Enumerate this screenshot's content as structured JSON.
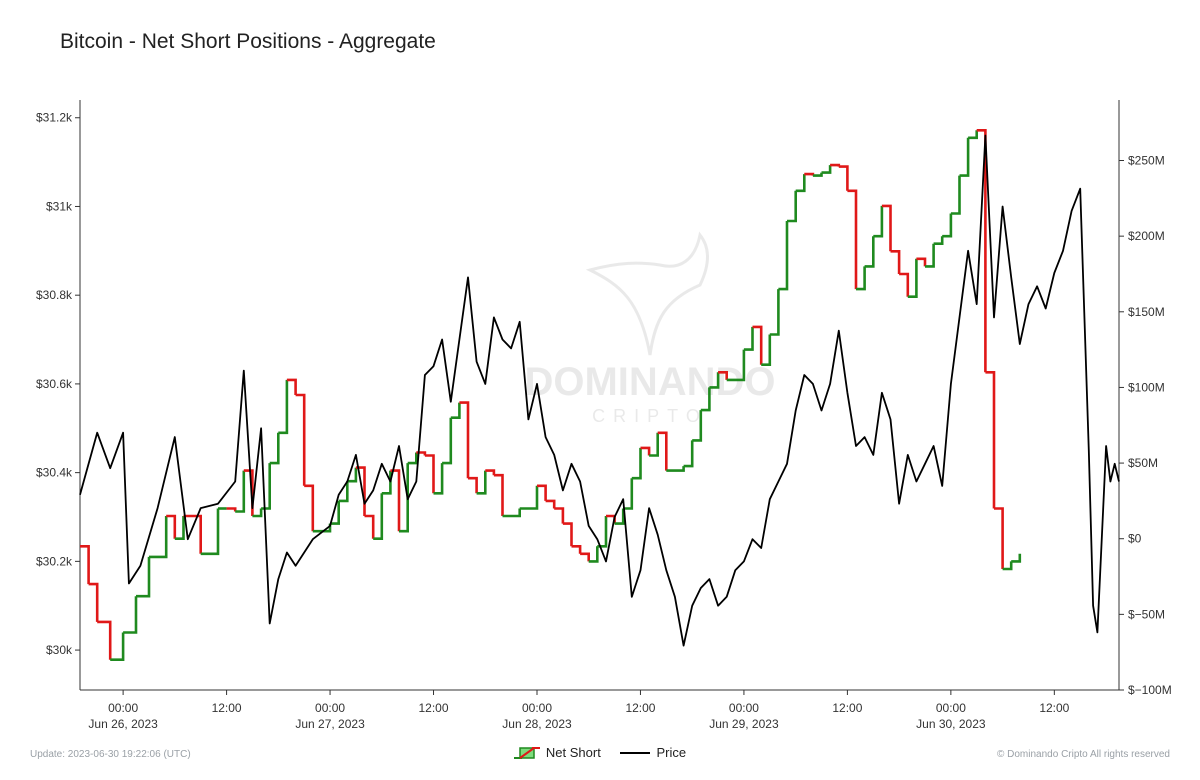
{
  "title": "Bitcoin - Net Short Positions - Aggregate",
  "footer": {
    "update": "Update: 2023-06-30 19:22:06 (UTC)",
    "copyright": "© Dominando Cripto All rights reserved"
  },
  "watermark": {
    "line1": "DOMINANDO",
    "line2": "CRIPTO"
  },
  "legend": {
    "net_short": "Net Short",
    "price": "Price"
  },
  "colors": {
    "up": "#1f8a1f",
    "down": "#e01818",
    "price": "#000000",
    "axis": "#333333"
  },
  "chart_data": {
    "type": "line",
    "x_axis": {
      "range": [
        "2023-06-25 19:00",
        "2023-06-30 19:30"
      ],
      "ticks": [
        {
          "t": "2023-06-26 00:00",
          "time": "00:00",
          "date": "Jun 26, 2023"
        },
        {
          "t": "2023-06-26 12:00",
          "time": "12:00",
          "date": ""
        },
        {
          "t": "2023-06-27 00:00",
          "time": "00:00",
          "date": "Jun 27, 2023"
        },
        {
          "t": "2023-06-27 12:00",
          "time": "12:00",
          "date": ""
        },
        {
          "t": "2023-06-28 00:00",
          "time": "00:00",
          "date": "Jun 28, 2023"
        },
        {
          "t": "2023-06-28 12:00",
          "time": "12:00",
          "date": ""
        },
        {
          "t": "2023-06-29 00:00",
          "time": "00:00",
          "date": "Jun 29, 2023"
        },
        {
          "t": "2023-06-29 12:00",
          "time": "12:00",
          "date": ""
        },
        {
          "t": "2023-06-30 00:00",
          "time": "00:00",
          "date": "Jun 30, 2023"
        },
        {
          "t": "2023-06-30 12:00",
          "time": "12:00",
          "date": ""
        }
      ]
    },
    "y_left": {
      "range": [
        29910,
        31240
      ],
      "ticks": [
        30000,
        30200,
        30400,
        30600,
        30800,
        31000,
        31200
      ],
      "tick_labels": [
        "$30k",
        "$30.2k",
        "$30.4k",
        "$30.6k",
        "$30.8k",
        "$31k",
        "$31.2k"
      ]
    },
    "y_right": {
      "range": [
        -100,
        290
      ],
      "ticks": [
        -100,
        -50,
        0,
        50,
        100,
        150,
        200,
        250
      ],
      "tick_labels": [
        "$−100M",
        "$−50M",
        "$0",
        "$50M",
        "$100M",
        "$150M",
        "$200M",
        "$250M"
      ]
    },
    "series": [
      {
        "name": "Net Short",
        "axis": "right",
        "style": "step",
        "points": [
          [
            "2023-06-25 19:00",
            -5
          ],
          [
            "2023-06-25 20:00",
            -30
          ],
          [
            "2023-06-25 21:00",
            -55
          ],
          [
            "2023-06-25 22:30",
            -80
          ],
          [
            "2023-06-26 00:00",
            -62
          ],
          [
            "2023-06-26 01:30",
            -38
          ],
          [
            "2023-06-26 03:00",
            -12
          ],
          [
            "2023-06-26 05:00",
            15
          ],
          [
            "2023-06-26 06:00",
            0
          ],
          [
            "2023-06-26 07:00",
            15
          ],
          [
            "2023-06-26 09:00",
            -10
          ],
          [
            "2023-06-26 11:00",
            20
          ],
          [
            "2023-06-26 12:00",
            20
          ],
          [
            "2023-06-26 13:00",
            18
          ],
          [
            "2023-06-26 14:00",
            45
          ],
          [
            "2023-06-26 15:00",
            15
          ],
          [
            "2023-06-26 16:00",
            20
          ],
          [
            "2023-06-26 17:00",
            50
          ],
          [
            "2023-06-26 18:00",
            70
          ],
          [
            "2023-06-26 19:00",
            105
          ],
          [
            "2023-06-26 20:00",
            95
          ],
          [
            "2023-06-26 21:00",
            35
          ],
          [
            "2023-06-26 22:00",
            5
          ],
          [
            "2023-06-27 00:00",
            10
          ],
          [
            "2023-06-27 01:00",
            25
          ],
          [
            "2023-06-27 02:00",
            38
          ],
          [
            "2023-06-27 03:00",
            47
          ],
          [
            "2023-06-27 04:00",
            15
          ],
          [
            "2023-06-27 05:00",
            0
          ],
          [
            "2023-06-27 06:00",
            30
          ],
          [
            "2023-06-27 07:00",
            45
          ],
          [
            "2023-06-27 08:00",
            5
          ],
          [
            "2023-06-27 09:00",
            50
          ],
          [
            "2023-06-27 10:00",
            57
          ],
          [
            "2023-06-27 11:00",
            55
          ],
          [
            "2023-06-27 12:00",
            30
          ],
          [
            "2023-06-27 13:00",
            50
          ],
          [
            "2023-06-27 14:00",
            80
          ],
          [
            "2023-06-27 15:00",
            90
          ],
          [
            "2023-06-27 16:00",
            40
          ],
          [
            "2023-06-27 17:00",
            30
          ],
          [
            "2023-06-27 18:00",
            45
          ],
          [
            "2023-06-27 19:00",
            42
          ],
          [
            "2023-06-27 20:00",
            15
          ],
          [
            "2023-06-27 22:00",
            20
          ],
          [
            "2023-06-28 00:00",
            35
          ],
          [
            "2023-06-28 01:00",
            25
          ],
          [
            "2023-06-28 02:00",
            20
          ],
          [
            "2023-06-28 03:00",
            10
          ],
          [
            "2023-06-28 04:00",
            -5
          ],
          [
            "2023-06-28 05:00",
            -10
          ],
          [
            "2023-06-28 06:00",
            -15
          ],
          [
            "2023-06-28 07:00",
            -5
          ],
          [
            "2023-06-28 08:00",
            15
          ],
          [
            "2023-06-28 09:00",
            10
          ],
          [
            "2023-06-28 10:00",
            20
          ],
          [
            "2023-06-28 11:00",
            40
          ],
          [
            "2023-06-28 12:00",
            60
          ],
          [
            "2023-06-28 13:00",
            55
          ],
          [
            "2023-06-28 14:00",
            70
          ],
          [
            "2023-06-28 15:00",
            45
          ],
          [
            "2023-06-28 17:00",
            48
          ],
          [
            "2023-06-28 18:00",
            65
          ],
          [
            "2023-06-28 19:00",
            85
          ],
          [
            "2023-06-28 20:00",
            100
          ],
          [
            "2023-06-28 21:00",
            110
          ],
          [
            "2023-06-28 22:00",
            105
          ],
          [
            "2023-06-29 00:00",
            125
          ],
          [
            "2023-06-29 01:00",
            140
          ],
          [
            "2023-06-29 02:00",
            115
          ],
          [
            "2023-06-29 03:00",
            135
          ],
          [
            "2023-06-29 04:00",
            165
          ],
          [
            "2023-06-29 05:00",
            210
          ],
          [
            "2023-06-29 06:00",
            230
          ],
          [
            "2023-06-29 07:00",
            241
          ],
          [
            "2023-06-29 08:00",
            240
          ],
          [
            "2023-06-29 09:00",
            242
          ],
          [
            "2023-06-29 10:00",
            247
          ],
          [
            "2023-06-29 11:00",
            246
          ],
          [
            "2023-06-29 12:00",
            230
          ],
          [
            "2023-06-29 13:00",
            165
          ],
          [
            "2023-06-29 14:00",
            180
          ],
          [
            "2023-06-29 15:00",
            200
          ],
          [
            "2023-06-29 16:00",
            220
          ],
          [
            "2023-06-29 17:00",
            190
          ],
          [
            "2023-06-29 18:00",
            175
          ],
          [
            "2023-06-29 19:00",
            160
          ],
          [
            "2023-06-29 20:00",
            185
          ],
          [
            "2023-06-29 21:00",
            180
          ],
          [
            "2023-06-29 22:00",
            195
          ],
          [
            "2023-06-29 23:00",
            200
          ],
          [
            "2023-06-30 00:00",
            215
          ],
          [
            "2023-06-30 01:00",
            240
          ],
          [
            "2023-06-30 02:00",
            265
          ],
          [
            "2023-06-30 03:00",
            270
          ],
          [
            "2023-06-30 04:00",
            110
          ],
          [
            "2023-06-30 05:00",
            20
          ],
          [
            "2023-06-30 06:00",
            -20
          ],
          [
            "2023-06-30 07:00",
            -15
          ],
          [
            "2023-06-30 08:00",
            -10
          ]
        ]
      },
      {
        "name": "Price",
        "axis": "left",
        "style": "line",
        "points": [
          [
            "2023-06-25 19:00",
            30350
          ],
          [
            "2023-06-25 21:00",
            30490
          ],
          [
            "2023-06-25 22:30",
            30410
          ],
          [
            "2023-06-26 00:00",
            30490
          ],
          [
            "2023-06-26 00:40",
            30150
          ],
          [
            "2023-06-26 02:00",
            30190
          ],
          [
            "2023-06-26 04:00",
            30320
          ],
          [
            "2023-06-26 06:00",
            30480
          ],
          [
            "2023-06-26 07:30",
            30250
          ],
          [
            "2023-06-26 09:00",
            30320
          ],
          [
            "2023-06-26 11:00",
            30330
          ],
          [
            "2023-06-26 13:00",
            30380
          ],
          [
            "2023-06-26 14:00",
            30630
          ],
          [
            "2023-06-26 15:00",
            30320
          ],
          [
            "2023-06-26 16:00",
            30500
          ],
          [
            "2023-06-26 17:00",
            30060
          ],
          [
            "2023-06-26 18:00",
            30160
          ],
          [
            "2023-06-26 19:00",
            30220
          ],
          [
            "2023-06-26 20:00",
            30190
          ],
          [
            "2023-06-26 22:00",
            30250
          ],
          [
            "2023-06-27 00:00",
            30280
          ],
          [
            "2023-06-27 01:00",
            30350
          ],
          [
            "2023-06-27 02:00",
            30380
          ],
          [
            "2023-06-27 03:00",
            30440
          ],
          [
            "2023-06-27 04:00",
            30330
          ],
          [
            "2023-06-27 05:00",
            30360
          ],
          [
            "2023-06-27 06:00",
            30420
          ],
          [
            "2023-06-27 07:00",
            30380
          ],
          [
            "2023-06-27 08:00",
            30460
          ],
          [
            "2023-06-27 09:00",
            30340
          ],
          [
            "2023-06-27 10:00",
            30380
          ],
          [
            "2023-06-27 11:00",
            30620
          ],
          [
            "2023-06-27 12:00",
            30640
          ],
          [
            "2023-06-27 13:00",
            30700
          ],
          [
            "2023-06-27 14:00",
            30560
          ],
          [
            "2023-06-27 15:00",
            30700
          ],
          [
            "2023-06-27 16:00",
            30840
          ],
          [
            "2023-06-27 17:00",
            30650
          ],
          [
            "2023-06-27 18:00",
            30600
          ],
          [
            "2023-06-27 19:00",
            30750
          ],
          [
            "2023-06-27 20:00",
            30700
          ],
          [
            "2023-06-27 21:00",
            30680
          ],
          [
            "2023-06-27 22:00",
            30740
          ],
          [
            "2023-06-27 23:00",
            30520
          ],
          [
            "2023-06-28 00:00",
            30600
          ],
          [
            "2023-06-28 01:00",
            30480
          ],
          [
            "2023-06-28 02:00",
            30440
          ],
          [
            "2023-06-28 03:00",
            30360
          ],
          [
            "2023-06-28 04:00",
            30420
          ],
          [
            "2023-06-28 05:00",
            30380
          ],
          [
            "2023-06-28 06:00",
            30280
          ],
          [
            "2023-06-28 07:00",
            30250
          ],
          [
            "2023-06-28 08:00",
            30200
          ],
          [
            "2023-06-28 09:00",
            30300
          ],
          [
            "2023-06-28 10:00",
            30340
          ],
          [
            "2023-06-28 11:00",
            30120
          ],
          [
            "2023-06-28 12:00",
            30180
          ],
          [
            "2023-06-28 13:00",
            30320
          ],
          [
            "2023-06-28 14:00",
            30260
          ],
          [
            "2023-06-28 15:00",
            30180
          ],
          [
            "2023-06-28 16:00",
            30120
          ],
          [
            "2023-06-28 17:00",
            30010
          ],
          [
            "2023-06-28 18:00",
            30100
          ],
          [
            "2023-06-28 19:00",
            30140
          ],
          [
            "2023-06-28 20:00",
            30160
          ],
          [
            "2023-06-28 21:00",
            30100
          ],
          [
            "2023-06-28 22:00",
            30120
          ],
          [
            "2023-06-28 23:00",
            30180
          ],
          [
            "2023-06-29 00:00",
            30200
          ],
          [
            "2023-06-29 01:00",
            30250
          ],
          [
            "2023-06-29 02:00",
            30230
          ],
          [
            "2023-06-29 03:00",
            30340
          ],
          [
            "2023-06-29 04:00",
            30380
          ],
          [
            "2023-06-29 05:00",
            30420
          ],
          [
            "2023-06-29 06:00",
            30540
          ],
          [
            "2023-06-29 07:00",
            30620
          ],
          [
            "2023-06-29 08:00",
            30600
          ],
          [
            "2023-06-29 09:00",
            30540
          ],
          [
            "2023-06-29 10:00",
            30600
          ],
          [
            "2023-06-29 11:00",
            30720
          ],
          [
            "2023-06-29 12:00",
            30580
          ],
          [
            "2023-06-29 13:00",
            30460
          ],
          [
            "2023-06-29 14:00",
            30480
          ],
          [
            "2023-06-29 15:00",
            30440
          ],
          [
            "2023-06-29 16:00",
            30580
          ],
          [
            "2023-06-29 17:00",
            30520
          ],
          [
            "2023-06-29 18:00",
            30330
          ],
          [
            "2023-06-29 19:00",
            30440
          ],
          [
            "2023-06-29 20:00",
            30380
          ],
          [
            "2023-06-29 21:00",
            30420
          ],
          [
            "2023-06-29 22:00",
            30460
          ],
          [
            "2023-06-29 23:00",
            30370
          ],
          [
            "2023-06-30 00:00",
            30600
          ],
          [
            "2023-06-30 01:00",
            30750
          ],
          [
            "2023-06-30 02:00",
            30900
          ],
          [
            "2023-06-30 03:00",
            30780
          ],
          [
            "2023-06-30 04:00",
            31160
          ],
          [
            "2023-06-30 05:00",
            30750
          ],
          [
            "2023-06-30 06:00",
            31000
          ],
          [
            "2023-06-30 07:00",
            30840
          ],
          [
            "2023-06-30 08:00",
            30690
          ],
          [
            "2023-06-30 09:00",
            30780
          ],
          [
            "2023-06-30 10:00",
            30820
          ],
          [
            "2023-06-30 11:00",
            30770
          ],
          [
            "2023-06-30 12:00",
            30850
          ],
          [
            "2023-06-30 13:00",
            30900
          ],
          [
            "2023-06-30 14:00",
            30990
          ],
          [
            "2023-06-30 15:00",
            31040
          ],
          [
            "2023-06-30 16:00",
            30450
          ],
          [
            "2023-06-30 16:30",
            30100
          ],
          [
            "2023-06-30 17:00",
            30040
          ],
          [
            "2023-06-30 18:00",
            30460
          ],
          [
            "2023-06-30 18:30",
            30380
          ],
          [
            "2023-06-30 19:00",
            30420
          ],
          [
            "2023-06-30 19:30",
            30380
          ]
        ]
      }
    ],
    "grid": false,
    "legend_position": "bottom-center"
  }
}
